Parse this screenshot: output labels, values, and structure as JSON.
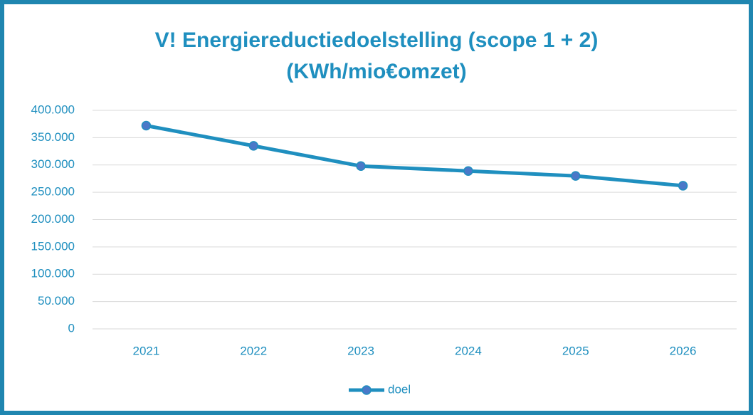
{
  "chart_data": {
    "type": "line",
    "title": [
      "V! Energiereductiedoelstelling (scope 1 + 2)",
      "(KWh/mio€omzet)"
    ],
    "categories": [
      "2021",
      "2022",
      "2023",
      "2024",
      "2025",
      "2026"
    ],
    "series": [
      {
        "name": "doel",
        "color": "#1f8fbf",
        "marker_color": "#4a78c8",
        "values": [
          372000,
          335000,
          298000,
          289000,
          280000,
          262000
        ]
      }
    ],
    "ylim": [
      0,
      400000
    ],
    "yticks": [
      0,
      {
        "value": 50000,
        "label": "50.000"
      },
      {
        "value": 100000,
        "label": "100.000"
      },
      {
        "value": 150000,
        "label": "150.000"
      },
      {
        "value": 200000,
        "label": "200.000"
      },
      {
        "value": 250000,
        "label": "250.000"
      },
      {
        "value": 300000,
        "label": "300.000"
      },
      {
        "value": 350000,
        "label": "350.000"
      },
      {
        "value": 400000,
        "label": "400.000"
      }
    ],
    "grid": true,
    "legend": "bottom"
  }
}
